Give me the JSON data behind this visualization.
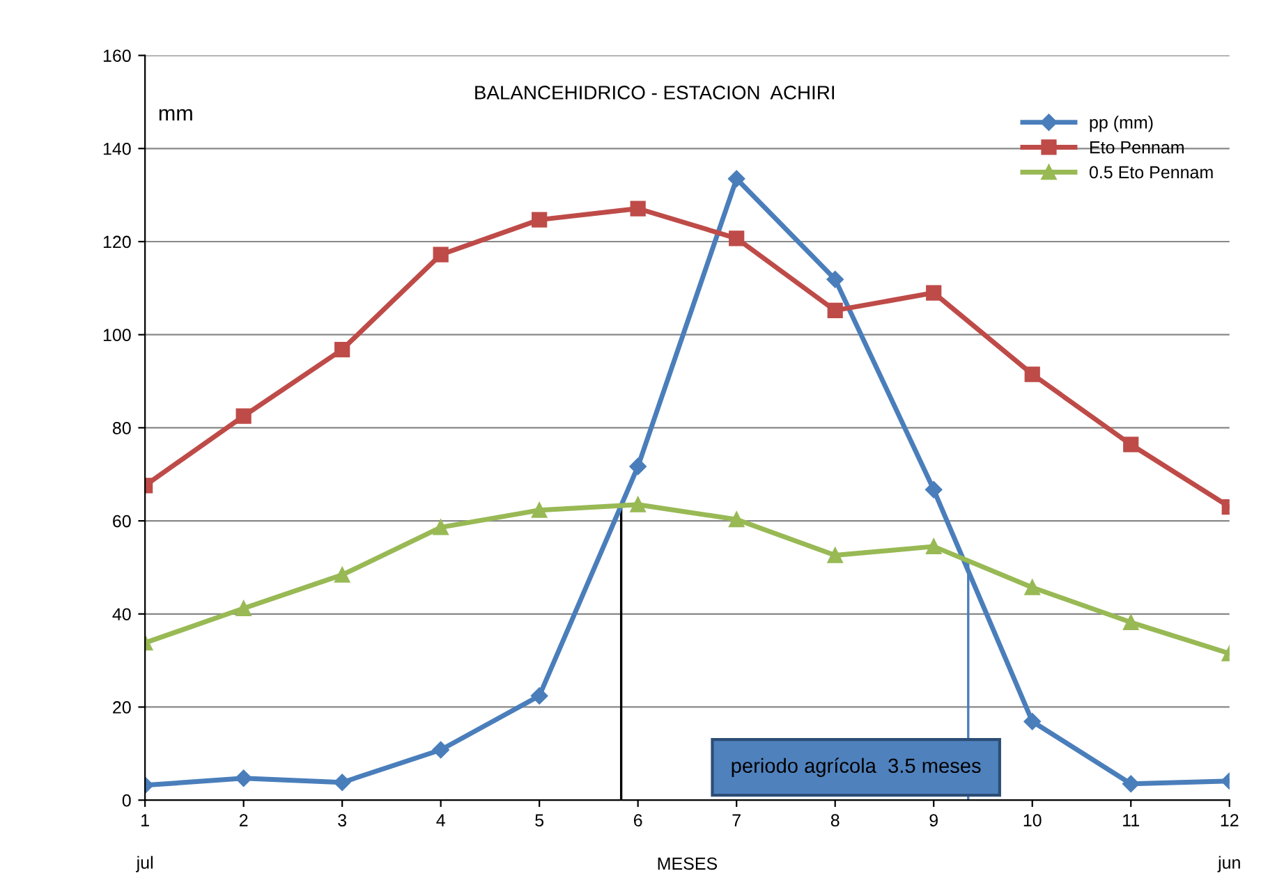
{
  "chart_data": {
    "type": "line",
    "title": "BALANCEHIDRICO - ESTACION  ACHIRI",
    "xlabel": "MESES",
    "ylabel": "mm",
    "x": [
      1,
      2,
      3,
      4,
      5,
      6,
      7,
      8,
      9,
      10,
      11,
      12
    ],
    "xlim": [
      1,
      12
    ],
    "xticks": [
      1,
      2,
      3,
      4,
      5,
      6,
      7,
      8,
      9,
      10,
      11,
      12
    ],
    "ylim": [
      0,
      160
    ],
    "yticks": [
      0,
      20,
      40,
      60,
      80,
      100,
      120,
      140,
      160
    ],
    "grid": "y",
    "legend": "top right",
    "line_style": "solid",
    "series": [
      {
        "name": "pp (mm)",
        "color": "#4a7ebb",
        "marker": "diamond",
        "values": [
          3.2,
          4.7,
          3.8,
          10.8,
          22.4,
          71.7,
          133.5,
          111.9,
          66.7,
          16.9,
          3.5,
          4.1
        ]
      },
      {
        "name": "Eto Pennam",
        "color": "#be4b48",
        "marker": "square",
        "values": [
          67.6,
          82.5,
          96.8,
          117.2,
          124.7,
          127.1,
          120.7,
          105.2,
          109.0,
          91.5,
          76.4,
          63.0
        ]
      },
      {
        "name": "0.5 Eto Pennam",
        "color": "#98b954",
        "marker": "triangle",
        "values": [
          33.8,
          41.2,
          48.4,
          58.6,
          62.3,
          63.5,
          60.3,
          52.6,
          54.5,
          45.7,
          38.2,
          31.5
        ]
      }
    ],
    "ref_lines": [
      {
        "axis": "x",
        "value": 5.83,
        "color": "#000000"
      },
      {
        "axis": "x",
        "value": 9.35,
        "color": "#4a7ebb"
      }
    ],
    "annotations": [
      "periodo agrícola  3.5 meses",
      "jul",
      "jun"
    ]
  }
}
